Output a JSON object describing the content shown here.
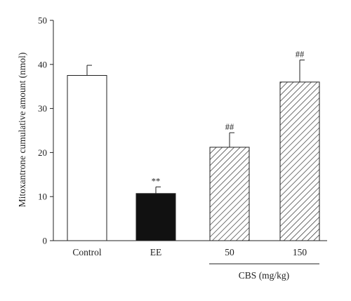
{
  "chart_data": {
    "type": "bar",
    "ylabel": "Mitoxantrone cumulative amount (nmol)",
    "ylim": [
      0,
      50
    ],
    "yticks": [
      0,
      10,
      20,
      30,
      40,
      50
    ],
    "categories": [
      "Control",
      "EE",
      "50",
      "150"
    ],
    "values": [
      37.5,
      10.7,
      21.2,
      36.0
    ],
    "errors": [
      2.3,
      1.5,
      3.3,
      5.0
    ],
    "annotations": [
      "",
      "**",
      "##",
      "##"
    ],
    "fills": [
      "white",
      "black",
      "hatched",
      "hatched"
    ],
    "group_label": "CBS (mg/kg)",
    "group_members": [
      2,
      3
    ]
  }
}
